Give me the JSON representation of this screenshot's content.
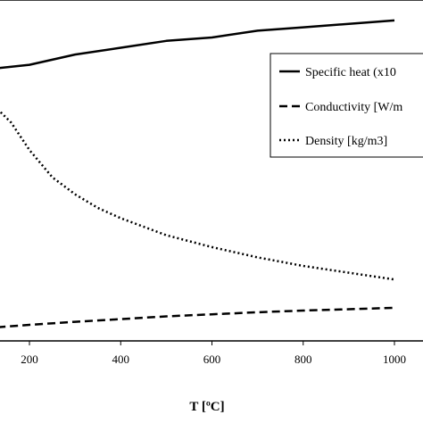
{
  "chart_data": {
    "type": "line",
    "xlabel": "T [ºC]",
    "x_tick_labels": [
      "200",
      "400",
      "600",
      "800",
      "1000"
    ],
    "xlim": [
      130,
      1000
    ],
    "series": [
      {
        "name": "Specific heat (x10",
        "style": "solid",
        "x": [
          130,
          200,
          300,
          400,
          500,
          600,
          700,
          800,
          900,
          1000
        ],
        "y": [
          0.8,
          0.81,
          0.84,
          0.86,
          0.88,
          0.89,
          0.91,
          0.92,
          0.93,
          0.94
        ]
      },
      {
        "name": "Conductivity [W/m",
        "style": "dashed",
        "x": [
          130,
          200,
          300,
          400,
          500,
          600,
          700,
          800,
          900,
          1000
        ],
        "y": [
          0.04,
          0.047,
          0.056,
          0.064,
          0.072,
          0.078,
          0.084,
          0.089,
          0.093,
          0.097
        ]
      },
      {
        "name": "Density [kg/m3]",
        "style": "dotted",
        "x": [
          130,
          160,
          200,
          250,
          300,
          350,
          400,
          450,
          500,
          600,
          700,
          800,
          900,
          1000
        ],
        "y": [
          0.68,
          0.64,
          0.56,
          0.48,
          0.43,
          0.39,
          0.36,
          0.335,
          0.31,
          0.275,
          0.245,
          0.22,
          0.2,
          0.18
        ]
      }
    ],
    "grid": false,
    "legend_position": "top-right"
  }
}
